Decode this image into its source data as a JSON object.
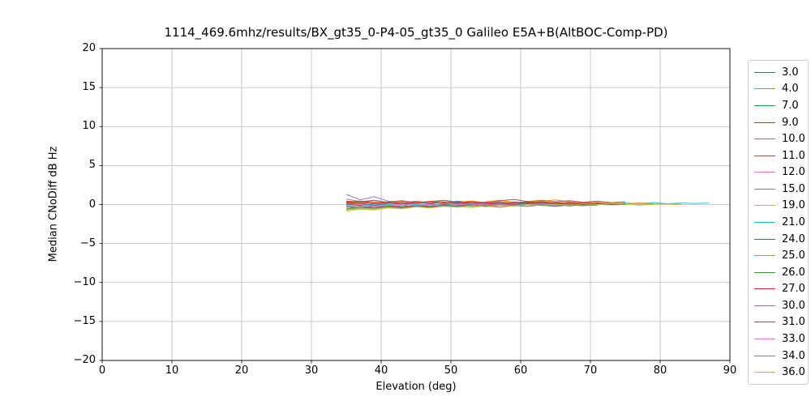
{
  "chart_data": {
    "type": "line",
    "title": "1114_469.6mhz/results/BX_gt35_0-P4-05_gt35_0 Galileo E5A+B(AltBOC-Comp-PD)",
    "xlabel": "Elevation (deg)",
    "ylabel": "Median CNoDiff dB Hz",
    "xlim": [
      0,
      90
    ],
    "ylim": [
      -20,
      20
    ],
    "xticks": [
      0,
      10,
      20,
      30,
      40,
      50,
      60,
      70,
      80,
      90
    ],
    "yticks": [
      -20,
      -15,
      -10,
      -5,
      0,
      5,
      10,
      15,
      20
    ],
    "grid": true,
    "legend_position": "right-outside",
    "series": [
      {
        "name": "3.0",
        "color": "#1f77b4",
        "x": [
          35,
          37,
          39,
          41,
          43,
          45,
          47,
          49,
          51,
          53,
          55,
          57,
          59,
          61,
          63,
          65,
          67,
          69,
          71,
          73
        ],
        "y": [
          0.1,
          0.2,
          -0.1,
          0.15,
          0.3,
          0.1,
          0.35,
          0.2,
          0.45,
          0.25,
          0.1,
          0.3,
          0.15,
          0.4,
          0.2,
          0.1,
          0.25,
          0.05,
          0.2,
          0.1
        ]
      },
      {
        "name": "4.0",
        "color": "#ff7f0e",
        "x": [
          35,
          37,
          39,
          41,
          43,
          45,
          47,
          49,
          51,
          53,
          55,
          57,
          59,
          61,
          63,
          65,
          67,
          69,
          71,
          73,
          75
        ],
        "y": [
          0.35,
          0.15,
          0.3,
          0.1,
          0.25,
          0.45,
          0.2,
          0.5,
          0.3,
          0.15,
          0.35,
          0.55,
          0.3,
          0.2,
          0.4,
          0.6,
          0.35,
          0.2,
          0.3,
          0.1,
          0.2
        ]
      },
      {
        "name": "7.0",
        "color": "#2ca02c",
        "x": [
          35,
          37,
          39,
          41,
          43,
          45,
          47,
          49,
          51,
          53,
          55,
          57,
          59,
          61,
          63,
          65,
          67,
          69,
          71
        ],
        "y": [
          -0.3,
          -0.45,
          -0.2,
          -0.35,
          -0.1,
          -0.3,
          0.1,
          -0.15,
          0.2,
          -0.05,
          -0.25,
          0.05,
          -0.15,
          0.1,
          -0.1,
          0.05,
          -0.2,
          0.0,
          -0.1
        ]
      },
      {
        "name": "9.0",
        "color": "#d62728",
        "x": [
          35,
          37,
          39,
          41,
          43,
          45,
          47,
          49,
          51,
          53,
          55,
          57,
          59,
          61,
          63,
          65,
          67,
          69,
          71,
          73
        ],
        "y": [
          0.45,
          0.3,
          0.5,
          0.25,
          0.4,
          0.2,
          0.35,
          0.15,
          0.3,
          0.4,
          0.2,
          0.35,
          0.1,
          0.25,
          0.4,
          0.15,
          0.3,
          0.1,
          0.2,
          0.15
        ]
      },
      {
        "name": "10.0",
        "color": "#9467bd",
        "x": [
          35,
          37,
          39,
          41,
          43,
          45,
          47,
          49,
          51,
          53,
          55,
          57,
          59,
          61,
          63,
          65,
          67,
          69,
          71
        ],
        "y": [
          1.3,
          0.6,
          1.0,
          0.45,
          0.25,
          0.4,
          0.15,
          0.3,
          0.1,
          0.25,
          0.05,
          0.2,
          -0.05,
          0.15,
          0.0,
          0.2,
          0.05,
          0.15,
          0.0
        ]
      },
      {
        "name": "11.0",
        "color": "#8c564b",
        "x": [
          35,
          37,
          39,
          41,
          43,
          45,
          47,
          49,
          51,
          53,
          55,
          57,
          59,
          61,
          63,
          65,
          67,
          69,
          71,
          73,
          75
        ],
        "y": [
          0.3,
          0.45,
          0.2,
          0.35,
          0.5,
          0.25,
          0.4,
          0.55,
          0.3,
          0.45,
          0.25,
          0.5,
          0.65,
          0.4,
          0.55,
          0.35,
          0.5,
          0.3,
          0.45,
          0.25,
          0.35
        ]
      },
      {
        "name": "12.0",
        "color": "#e377c2",
        "x": [
          35,
          37,
          39,
          41,
          43,
          45,
          47,
          49,
          51,
          53,
          55,
          57,
          59,
          61,
          63,
          65,
          67,
          69,
          71
        ],
        "y": [
          -0.1,
          0.05,
          -0.2,
          0.0,
          -0.15,
          0.1,
          -0.05,
          0.15,
          0.0,
          -0.1,
          0.1,
          -0.05,
          0.15,
          0.05,
          -0.1,
          0.0,
          0.1,
          -0.05,
          0.05
        ]
      },
      {
        "name": "15.0",
        "color": "#7f7f7f",
        "x": [
          35,
          37,
          39,
          41,
          43,
          45,
          47,
          49,
          51,
          53,
          55,
          57,
          59,
          61,
          63,
          65,
          67,
          69,
          71,
          73
        ],
        "y": [
          0.7,
          0.4,
          0.55,
          0.3,
          0.45,
          0.2,
          0.35,
          0.5,
          0.25,
          0.1,
          0.3,
          0.15,
          0.35,
          0.2,
          0.4,
          0.1,
          0.25,
          0.05,
          0.15,
          0.1
        ]
      },
      {
        "name": "19.0",
        "color": "#bcbd22",
        "x": [
          35,
          37,
          39,
          41,
          43,
          45,
          47,
          49,
          51,
          53,
          55,
          57,
          59,
          61,
          63,
          65,
          67,
          69,
          71,
          73,
          75,
          77,
          79,
          81,
          83
        ],
        "y": [
          -0.7,
          -0.5,
          -0.6,
          -0.35,
          -0.45,
          -0.2,
          -0.35,
          -0.1,
          -0.25,
          -0.4,
          -0.15,
          -0.3,
          -0.05,
          -0.2,
          0.05,
          -0.1,
          0.1,
          -0.05,
          0.15,
          0.0,
          0.1,
          -0.1,
          0.05,
          0.1,
          0.0
        ]
      },
      {
        "name": "21.0",
        "color": "#17becf",
        "x": [
          35,
          37,
          39,
          41,
          43,
          45,
          47,
          49,
          51,
          53,
          55,
          57,
          59,
          61,
          63,
          65,
          67,
          69,
          71,
          73,
          75,
          77,
          79,
          81,
          83,
          85,
          87
        ],
        "y": [
          0.05,
          -0.15,
          0.1,
          -0.05,
          0.15,
          0.0,
          -0.2,
          0.1,
          -0.1,
          0.05,
          0.2,
          0.0,
          -0.15,
          0.1,
          -0.05,
          0.15,
          0.05,
          -0.1,
          0.1,
          0.0,
          0.2,
          0.1,
          0.25,
          0.1,
          0.2,
          0.15,
          0.2
        ]
      },
      {
        "name": "24.0",
        "color": "#1f77b4",
        "x": [
          35,
          37,
          39,
          41,
          43,
          45,
          47,
          49,
          51,
          53,
          55,
          57,
          59,
          61,
          63,
          65,
          67,
          69,
          71,
          73
        ],
        "y": [
          0.0,
          0.15,
          -0.1,
          0.2,
          0.05,
          0.25,
          0.1,
          0.3,
          0.15,
          0.35,
          0.2,
          0.05,
          0.25,
          0.1,
          0.3,
          0.15,
          0.0,
          0.2,
          0.05,
          0.15
        ]
      },
      {
        "name": "25.0",
        "color": "#ff7f0e",
        "x": [
          35,
          37,
          39,
          41,
          43,
          45,
          47,
          49,
          51,
          53,
          55,
          57,
          59,
          61,
          63,
          65,
          67,
          69,
          71,
          73,
          75,
          77,
          79
        ],
        "y": [
          0.15,
          0.3,
          0.1,
          0.25,
          0.4,
          0.2,
          0.35,
          0.15,
          0.3,
          0.45,
          0.25,
          0.4,
          0.2,
          0.35,
          0.5,
          0.3,
          0.15,
          0.3,
          0.1,
          0.25,
          0.1,
          0.2,
          0.1
        ]
      },
      {
        "name": "26.0",
        "color": "#2ca02c",
        "x": [
          35,
          37,
          39,
          41,
          43,
          45,
          47,
          49,
          51,
          53,
          55,
          57,
          59,
          61,
          63,
          65,
          67,
          69,
          71
        ],
        "y": [
          -0.55,
          -0.35,
          -0.45,
          -0.25,
          -0.4,
          -0.2,
          -0.3,
          -0.1,
          -0.25,
          -0.05,
          -0.2,
          0.0,
          -0.15,
          0.05,
          -0.1,
          -0.25,
          -0.05,
          -0.15,
          -0.05
        ]
      },
      {
        "name": "27.0",
        "color": "#d62728",
        "x": [
          35,
          37,
          39,
          41,
          43,
          45,
          47,
          49,
          51,
          53,
          55,
          57,
          59,
          61,
          63,
          65,
          67,
          69,
          71
        ],
        "y": [
          0.2,
          0.35,
          0.15,
          0.3,
          0.1,
          0.25,
          0.4,
          0.2,
          0.3,
          0.1,
          0.25,
          0.05,
          0.2,
          0.35,
          0.15,
          0.25,
          0.1,
          0.2,
          0.1
        ]
      },
      {
        "name": "30.0",
        "color": "#9467bd",
        "x": [
          35,
          37,
          39,
          41,
          43,
          45,
          47,
          49,
          51,
          53,
          55,
          57,
          59,
          61,
          63,
          65,
          67,
          69
        ],
        "y": [
          -0.2,
          -0.05,
          -0.25,
          -0.1,
          -0.3,
          -0.15,
          0.0,
          -0.2,
          -0.05,
          -0.25,
          -0.1,
          0.05,
          -0.15,
          0.0,
          -0.1,
          -0.2,
          -0.05,
          -0.15
        ]
      },
      {
        "name": "31.0",
        "color": "#8c564b",
        "x": [
          35,
          37,
          39,
          41,
          43,
          45,
          47,
          49,
          51,
          53,
          55,
          57,
          59,
          61,
          63,
          65,
          67,
          69,
          71,
          73,
          75
        ],
        "y": [
          -0.35,
          -0.2,
          -0.4,
          -0.15,
          -0.3,
          -0.1,
          -0.25,
          0.0,
          -0.15,
          0.1,
          -0.05,
          0.15,
          0.0,
          0.2,
          0.05,
          0.25,
          0.1,
          0.0,
          0.15,
          0.05,
          0.1
        ]
      },
      {
        "name": "33.0",
        "color": "#e377c2",
        "x": [
          35,
          37,
          39,
          41,
          43,
          45,
          47,
          49,
          51,
          53,
          55,
          57,
          59,
          61,
          63,
          65,
          67,
          69,
          71
        ],
        "y": [
          -0.15,
          0.0,
          -0.25,
          -0.1,
          0.05,
          -0.15,
          0.0,
          -0.2,
          -0.05,
          0.1,
          -0.1,
          0.05,
          -0.15,
          0.0,
          0.1,
          -0.05,
          0.05,
          -0.1,
          0.0
        ]
      },
      {
        "name": "34.0",
        "color": "#7f7f7f",
        "x": [
          35,
          37,
          39,
          41,
          43,
          45,
          47,
          49,
          51,
          53,
          55,
          57,
          59,
          61,
          63,
          65,
          67,
          69,
          71,
          73,
          75
        ],
        "y": [
          -0.6,
          -0.4,
          -0.5,
          -0.3,
          -0.45,
          -0.25,
          -0.35,
          -0.15,
          -0.3,
          -0.1,
          -0.2,
          -0.35,
          -0.15,
          -0.25,
          -0.05,
          -0.2,
          0.0,
          -0.1,
          0.05,
          -0.05,
          0.0
        ]
      },
      {
        "name": "36.0",
        "color": "#bcbd22",
        "x": [
          35,
          37,
          39,
          41,
          43,
          45,
          47,
          49,
          51,
          53,
          55,
          57,
          59,
          61,
          63,
          65,
          67,
          69,
          71,
          73,
          75,
          77,
          79,
          81,
          83
        ],
        "y": [
          -0.85,
          -0.6,
          -0.7,
          -0.45,
          -0.55,
          -0.3,
          -0.45,
          -0.25,
          -0.35,
          -0.15,
          -0.3,
          -0.1,
          -0.2,
          0.0,
          -0.15,
          0.05,
          -0.1,
          0.1,
          0.0,
          0.15,
          0.05,
          0.1,
          0.0,
          0.1,
          0.05
        ]
      }
    ]
  }
}
